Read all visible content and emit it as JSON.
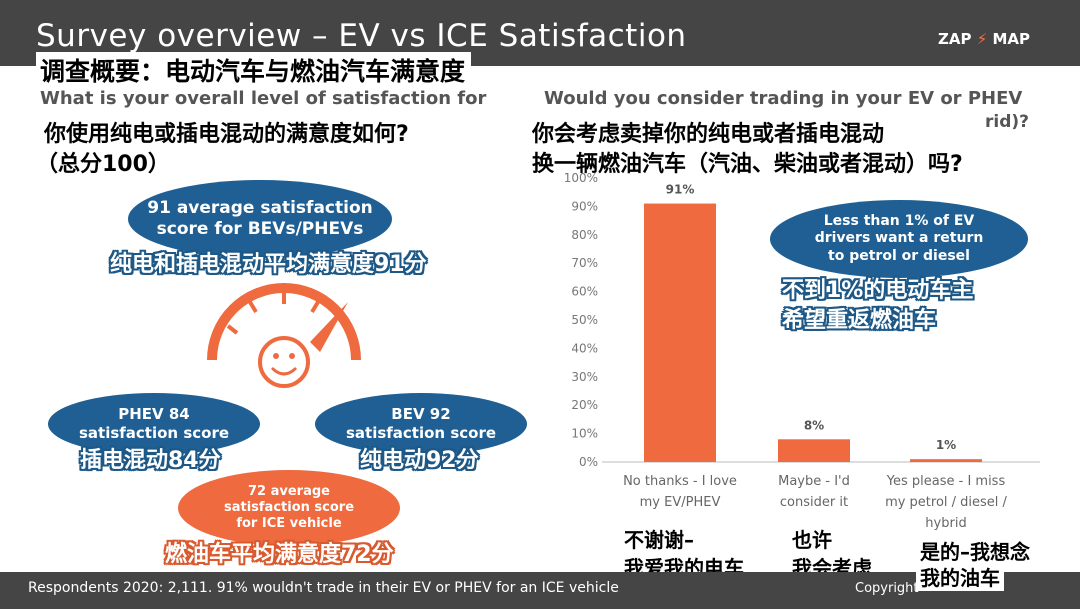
{
  "header": {
    "title": "Survey overview – EV vs ICE Satisfaction",
    "logo_left": "ZAP",
    "logo_right": "MAP"
  },
  "cn_title": "调查概要：电动汽车与燃油汽车满意度",
  "left": {
    "question_en": "What is your overall level of satisfaction for",
    "question_cn_line1": "你使用纯电或插电混动的满意度如何?",
    "question_cn_line2": "（总分100）",
    "avg_oval": {
      "line1": "91 average satisfaction",
      "line2": "score for BEVs/PHEVs"
    },
    "avg_cn": "纯电和插电混动平均满意度91分",
    "phev_oval": {
      "line1": "PHEV 84",
      "line2": "satisfaction score"
    },
    "phev_cn": "插电混动84分",
    "bev_oval": {
      "line1": "BEV 92",
      "line2": "satisfaction score"
    },
    "bev_cn": "纯电动92分",
    "ice_oval": {
      "line1": "72 average",
      "line2": "satisfaction score",
      "line3": "for ICE vehicle"
    },
    "ice_cn": "燃油车平均满意度72分"
  },
  "right": {
    "question_en": "Would you consider trading in your EV or PHEV",
    "question_en_tail": "rid)?",
    "question_cn_line1": "你会考虑卖掉你的纯电或者插电混动",
    "question_cn_line2": "换一辆燃油汽车（汽油、柴油或者混动）吗?",
    "callout": {
      "line1": "Less than 1% of EV",
      "line2": "drivers want a return",
      "line3": "to petrol or diesel"
    },
    "callout_cn_line1": "不到1%的电动车主",
    "callout_cn_line2": "希望重返燃油车",
    "cn_labels": [
      {
        "line1": "不谢谢–",
        "line2": "我爱我的电车"
      },
      {
        "line1": "也许",
        "line2": "我会考虑"
      },
      {
        "line1": "是的–我想念",
        "line2": "我的油车"
      }
    ]
  },
  "chart_data": {
    "type": "bar",
    "categories": [
      [
        "No thanks - I love",
        "my EV/PHEV"
      ],
      [
        "Maybe - I'd",
        "consider it"
      ],
      [
        "Yes please - I miss",
        "my petrol / diesel /",
        "hybrid"
      ]
    ],
    "values": [
      91,
      8,
      1
    ],
    "data_labels": [
      "91%",
      "8%",
      "1%"
    ],
    "yticks": [
      "0%",
      "10%",
      "20%",
      "30%",
      "40%",
      "50%",
      "60%",
      "70%",
      "80%",
      "90%",
      "100%"
    ],
    "ylim": [
      0,
      100
    ],
    "bar_color": "#ef6a3f",
    "grid": false
  },
  "footer": {
    "text": "Respondents 2020: 2,111. 91% wouldn't trade in their EV or PHEV for an ICE vehicle",
    "copyright": "Copyright"
  }
}
